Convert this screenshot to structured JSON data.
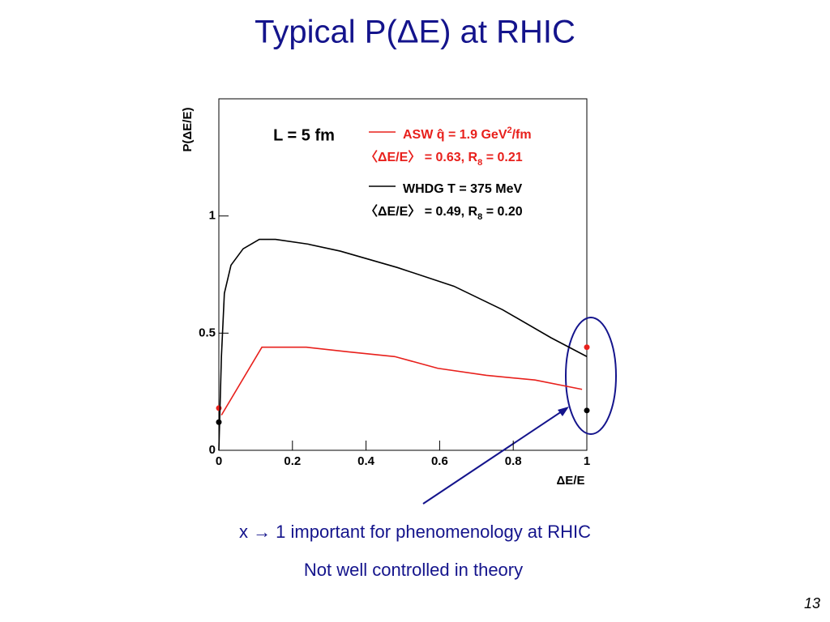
{
  "slide": {
    "title": "Typical P(ΔE) at RHIC",
    "notes": [
      "x → 1 important for phenomenology at RHIC",
      "Not well controlled in theory"
    ],
    "page": "13"
  },
  "chart_data": {
    "type": "line",
    "annotation": "L = 5 fm",
    "x_label": "ΔE/E",
    "y_label": "P(ΔE/E)",
    "xlim": [
      0,
      1
    ],
    "xticks": [
      0,
      0.2,
      0.4,
      0.6,
      0.8,
      1
    ],
    "ylim": [
      0,
      1.5
    ],
    "yticks": [
      0,
      0.5,
      1
    ],
    "series": [
      {
        "name": [
          "ASW q̂ = 1.9 GeV",
          "2",
          "/fm"
        ],
        "stat": [
          "〈ΔE/E〉 = 0.63, R",
          "8",
          " = 0.21"
        ],
        "color": "#e8201c",
        "x": [
          0.007,
          0.117,
          0.238,
          0.352,
          0.478,
          0.595,
          0.727,
          0.859,
          0.987
        ],
        "values": [
          0.15,
          0.44,
          0.44,
          0.42,
          0.4,
          0.35,
          0.32,
          0.3,
          0.26
        ],
        "endpoints": {
          "x": [
            0,
            1
          ],
          "values": [
            0.18,
            0.44
          ]
        }
      },
      {
        "name": [
          "WHDG T = 375 MeV"
        ],
        "stat": [
          "〈ΔE/E〉 = 0.49, R",
          "8",
          " = 0.20"
        ],
        "color": "#000000",
        "x": [
          0,
          0.007,
          0.015,
          0.033,
          0.066,
          0.11,
          0.154,
          0.242,
          0.33,
          0.485,
          0.639,
          0.771,
          0.903,
          1.0
        ],
        "values": [
          0,
          0.4,
          0.67,
          0.79,
          0.86,
          0.9,
          0.9,
          0.88,
          0.85,
          0.78,
          0.7,
          0.6,
          0.48,
          0.4
        ],
        "endpoints": {
          "x": [
            0,
            1
          ],
          "values": [
            0.12,
            0.17
          ]
        }
      }
    ]
  }
}
